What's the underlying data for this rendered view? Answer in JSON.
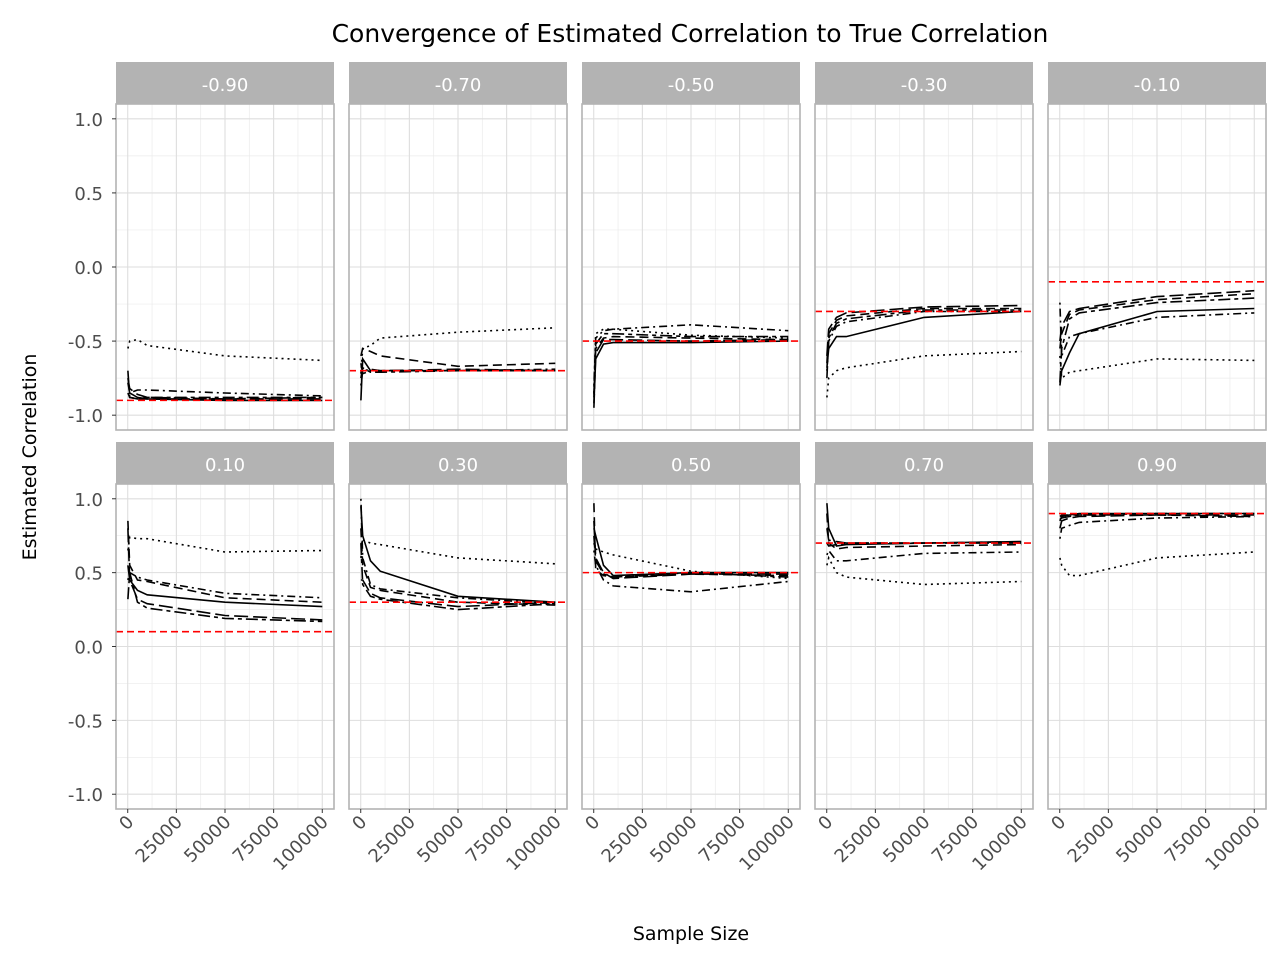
{
  "chart_data": {
    "type": "line",
    "title": "Convergence of Estimated Correlation to True Correlation",
    "xlabel": "Sample Size",
    "ylabel": "Estimated Correlation",
    "xlim": [
      0,
      100000
    ],
    "ylim": [
      -1.1,
      1.1
    ],
    "xticks": [
      0,
      25000,
      50000,
      75000,
      100000
    ],
    "yticks": [
      1.0,
      0.5,
      0.0,
      -0.5,
      -1.0
    ],
    "xtick_labels": [
      "0",
      "25000",
      "50000",
      "75000",
      "100000"
    ],
    "ytick_labels": [
      "1.0",
      "0.5",
      "0.0",
      "-0.5",
      "-1.0"
    ],
    "x": [
      100,
      1000,
      5000,
      10000,
      50000,
      100000
    ],
    "grid": true,
    "reference_line_color": "#ff0000",
    "series_color": "#000000",
    "line_styles": [
      "solid",
      "dashed",
      "dotted",
      "dotdash",
      "longdash",
      "twodash"
    ],
    "panels": [
      {
        "label": "-0.90",
        "true_value": -0.9,
        "series": [
          {
            "values": [
              -0.78,
              -0.85,
              -0.88,
              -0.89,
              -0.9,
              -0.9
            ]
          },
          {
            "values": [
              -0.85,
              -0.88,
              -0.89,
              -0.89,
              -0.89,
              -0.88
            ]
          },
          {
            "values": [
              -0.55,
              -0.5,
              -0.49,
              -0.53,
              -0.6,
              -0.63
            ]
          },
          {
            "values": [
              -0.86,
              -0.85,
              -0.83,
              -0.83,
              -0.85,
              -0.87
            ]
          },
          {
            "values": [
              -0.75,
              -0.82,
              -0.86,
              -0.88,
              -0.89,
              -0.89
            ]
          },
          {
            "values": [
              -0.7,
              -0.88,
              -0.89,
              -0.88,
              -0.88,
              -0.88
            ]
          }
        ]
      },
      {
        "label": "-0.70",
        "true_value": -0.7,
        "series": [
          {
            "values": [
              -0.9,
              -0.62,
              -0.7,
              -0.7,
              -0.7,
              -0.7
            ]
          },
          {
            "values": [
              -0.6,
              -0.55,
              -0.57,
              -0.6,
              -0.67,
              -0.65
            ]
          },
          {
            "values": [
              -0.72,
              -0.55,
              -0.53,
              -0.48,
              -0.44,
              -0.41
            ]
          },
          {
            "values": [
              -0.8,
              -0.7,
              -0.69,
              -0.7,
              -0.7,
              -0.69
            ]
          },
          {
            "values": [
              -0.65,
              -0.72,
              -0.7,
              -0.7,
              -0.69,
              -0.7
            ]
          },
          {
            "values": [
              -0.75,
              -0.68,
              -0.71,
              -0.71,
              -0.7,
              -0.7
            ]
          }
        ]
      },
      {
        "label": "-0.50",
        "true_value": -0.5,
        "series": [
          {
            "values": [
              -0.92,
              -0.62,
              -0.52,
              -0.51,
              -0.51,
              -0.5
            ]
          },
          {
            "values": [
              -0.88,
              -0.55,
              -0.48,
              -0.47,
              -0.48,
              -0.49
            ]
          },
          {
            "values": [
              -0.85,
              -0.45,
              -0.42,
              -0.42,
              -0.46,
              -0.48
            ]
          },
          {
            "values": [
              -0.8,
              -0.48,
              -0.43,
              -0.42,
              -0.39,
              -0.43
            ]
          },
          {
            "values": [
              -0.95,
              -0.58,
              -0.49,
              -0.49,
              -0.5,
              -0.49
            ]
          },
          {
            "values": [
              -0.86,
              -0.52,
              -0.45,
              -0.45,
              -0.47,
              -0.47
            ]
          }
        ]
      },
      {
        "label": "-0.30",
        "true_value": -0.3,
        "series": [
          {
            "values": [
              -0.68,
              -0.55,
              -0.47,
              -0.47,
              -0.34,
              -0.3
            ]
          },
          {
            "values": [
              -0.65,
              -0.45,
              -0.36,
              -0.33,
              -0.28,
              -0.28
            ]
          },
          {
            "values": [
              -0.88,
              -0.75,
              -0.7,
              -0.68,
              -0.6,
              -0.57
            ]
          },
          {
            "values": [
              -0.7,
              -0.5,
              -0.4,
              -0.37,
              -0.3,
              -0.3
            ]
          },
          {
            "values": [
              -0.6,
              -0.42,
              -0.34,
              -0.31,
              -0.27,
              -0.26
            ]
          },
          {
            "values": [
              -0.75,
              -0.48,
              -0.38,
              -0.35,
              -0.29,
              -0.29
            ]
          }
        ]
      },
      {
        "label": "-0.10",
        "true_value": -0.1,
        "series": [
          {
            "values": [
              -0.8,
              -0.7,
              -0.58,
              -0.45,
              -0.3,
              -0.28
            ]
          },
          {
            "values": [
              -0.55,
              -0.45,
              -0.32,
              -0.29,
              -0.22,
              -0.18
            ]
          },
          {
            "values": [
              -0.6,
              -0.75,
              -0.71,
              -0.7,
              -0.62,
              -0.63
            ]
          },
          {
            "values": [
              -0.24,
              -0.6,
              -0.47,
              -0.45,
              -0.34,
              -0.31
            ]
          },
          {
            "values": [
              -0.5,
              -0.4,
              -0.3,
              -0.28,
              -0.2,
              -0.16
            ]
          },
          {
            "values": [
              -0.78,
              -0.55,
              -0.35,
              -0.31,
              -0.24,
              -0.21
            ]
          }
        ]
      },
      {
        "label": "0.10",
        "true_value": 0.1,
        "series": [
          {
            "values": [
              0.55,
              0.45,
              0.38,
              0.35,
              0.3,
              0.27
            ]
          },
          {
            "values": [
              0.85,
              0.55,
              0.45,
              0.44,
              0.33,
              0.3
            ]
          },
          {
            "values": [
              0.65,
              0.74,
              0.73,
              0.73,
              0.64,
              0.65
            ]
          },
          {
            "values": [
              0.45,
              0.5,
              0.47,
              0.45,
              0.36,
              0.33
            ]
          },
          {
            "values": [
              0.8,
              0.45,
              0.32,
              0.29,
              0.21,
              0.18
            ]
          },
          {
            "values": [
              0.32,
              0.5,
              0.3,
              0.26,
              0.19,
              0.17
            ]
          }
        ]
      },
      {
        "label": "0.30",
        "true_value": 0.3,
        "series": [
          {
            "values": [
              0.95,
              0.75,
              0.58,
              0.51,
              0.34,
              0.3
            ]
          },
          {
            "values": [
              0.8,
              0.55,
              0.4,
              0.38,
              0.3,
              0.28
            ]
          },
          {
            "values": [
              0.6,
              0.72,
              0.7,
              0.69,
              0.6,
              0.56
            ]
          },
          {
            "values": [
              1.0,
              0.6,
              0.42,
              0.39,
              0.33,
              0.29
            ]
          },
          {
            "values": [
              0.45,
              0.45,
              0.36,
              0.33,
              0.27,
              0.3
            ]
          },
          {
            "values": [
              0.7,
              0.42,
              0.34,
              0.32,
              0.25,
              0.29
            ]
          }
        ]
      },
      {
        "label": "0.50",
        "true_value": 0.5,
        "series": [
          {
            "values": [
              0.8,
              0.75,
              0.55,
              0.48,
              0.5,
              0.5
            ]
          },
          {
            "values": [
              0.97,
              0.52,
              0.48,
              0.47,
              0.49,
              0.48
            ]
          },
          {
            "values": [
              0.7,
              0.66,
              0.64,
              0.62,
              0.51,
              0.46
            ]
          },
          {
            "values": [
              0.65,
              0.55,
              0.45,
              0.41,
              0.37,
              0.44
            ]
          },
          {
            "values": [
              0.85,
              0.6,
              0.5,
              0.46,
              0.49,
              0.49
            ]
          },
          {
            "values": [
              0.75,
              0.58,
              0.49,
              0.47,
              0.5,
              0.47
            ]
          }
        ]
      },
      {
        "label": "0.70",
        "true_value": 0.7,
        "series": [
          {
            "values": [
              0.97,
              0.8,
              0.68,
              0.69,
              0.7,
              0.71
            ]
          },
          {
            "values": [
              0.9,
              0.7,
              0.66,
              0.67,
              0.68,
              0.69
            ]
          },
          {
            "values": [
              0.55,
              0.6,
              0.5,
              0.47,
              0.42,
              0.44
            ]
          },
          {
            "values": [
              0.62,
              0.65,
              0.58,
              0.58,
              0.63,
              0.64
            ]
          },
          {
            "values": [
              0.8,
              0.72,
              0.71,
              0.7,
              0.7,
              0.71
            ]
          },
          {
            "values": [
              0.7,
              0.68,
              0.69,
              0.7,
              0.7,
              0.7
            ]
          }
        ]
      },
      {
        "label": "0.90",
        "true_value": 0.9,
        "series": [
          {
            "values": [
              0.85,
              0.88,
              0.89,
              0.9,
              0.9,
              0.9
            ]
          },
          {
            "values": [
              0.88,
              0.89,
              0.89,
              0.89,
              0.89,
              0.88
            ]
          },
          {
            "values": [
              0.6,
              0.55,
              0.48,
              0.48,
              0.6,
              0.64
            ]
          },
          {
            "values": [
              0.73,
              0.8,
              0.82,
              0.84,
              0.87,
              0.88
            ]
          },
          {
            "values": [
              0.8,
              0.85,
              0.87,
              0.88,
              0.89,
              0.89
            ]
          },
          {
            "values": [
              0.86,
              0.87,
              0.88,
              0.89,
              0.9,
              0.9
            ]
          }
        ]
      }
    ]
  }
}
